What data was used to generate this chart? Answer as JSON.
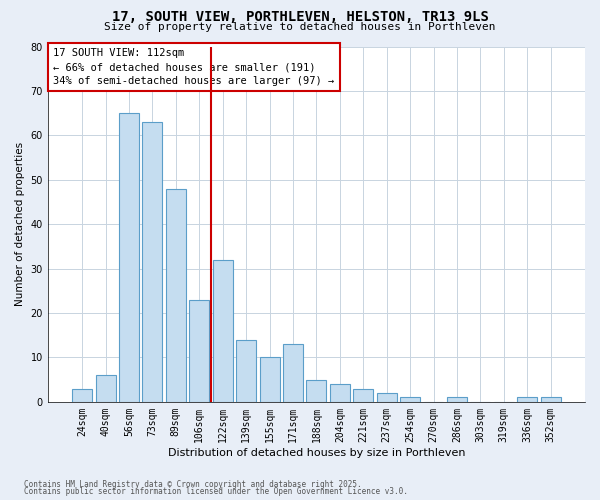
{
  "title": "17, SOUTH VIEW, PORTHLEVEN, HELSTON, TR13 9LS",
  "subtitle": "Size of property relative to detached houses in Porthleven",
  "xlabel": "Distribution of detached houses by size in Porthleven",
  "ylabel": "Number of detached properties",
  "bar_labels": [
    "24sqm",
    "40sqm",
    "56sqm",
    "73sqm",
    "89sqm",
    "106sqm",
    "122sqm",
    "139sqm",
    "155sqm",
    "171sqm",
    "188sqm",
    "204sqm",
    "221sqm",
    "237sqm",
    "254sqm",
    "270sqm",
    "286sqm",
    "303sqm",
    "319sqm",
    "336sqm",
    "352sqm"
  ],
  "bar_values": [
    3,
    6,
    65,
    63,
    48,
    23,
    32,
    14,
    10,
    13,
    5,
    4,
    3,
    2,
    1,
    0,
    1,
    0,
    0,
    1,
    1
  ],
  "bar_color": "#c5ddf0",
  "bar_edge_color": "#5b9ec9",
  "vline_x": 5.5,
  "vline_color": "#cc0000",
  "annotation_title": "17 SOUTH VIEW: 112sqm",
  "annotation_line1": "← 66% of detached houses are smaller (191)",
  "annotation_line2": "34% of semi-detached houses are larger (97) →",
  "annotation_box_color": "#cc0000",
  "ylim": [
    0,
    80
  ],
  "yticks": [
    0,
    10,
    20,
    30,
    40,
    50,
    60,
    70,
    80
  ],
  "footnote1": "Contains HM Land Registry data © Crown copyright and database right 2025.",
  "footnote2": "Contains public sector information licensed under the Open Government Licence v3.0.",
  "bg_color": "#e8eef7",
  "plot_bg_color": "#ffffff",
  "grid_color": "#c8d4e0"
}
